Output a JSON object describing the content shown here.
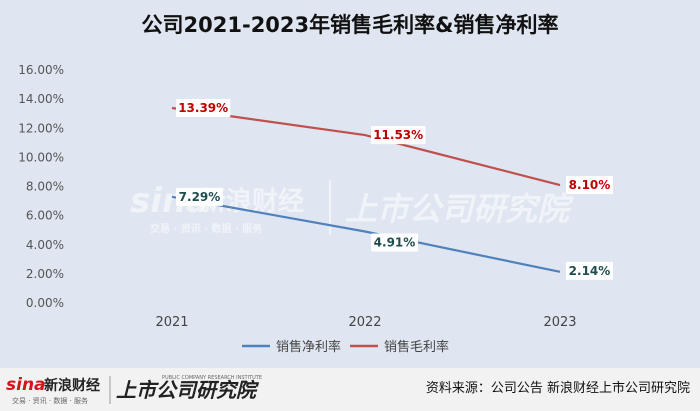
{
  "chart_data": {
    "type": "line",
    "title": "公司2021-2023年销售毛利率&销售净利率",
    "categories": [
      "2021",
      "2022",
      "2023"
    ],
    "y_ticks": [
      "0.00%",
      "2.00%",
      "4.00%",
      "6.00%",
      "8.00%",
      "10.00%",
      "12.00%",
      "14.00%",
      "16.00%"
    ],
    "ylim": [
      0,
      16
    ],
    "grid": false,
    "legend_position": "bottom",
    "series": [
      {
        "name": "销售净利率",
        "values": [
          7.29,
          4.91,
          2.14
        ],
        "labels": [
          "7.29%",
          "4.91%",
          "2.14%"
        ],
        "color": "#4f81bd",
        "label_color": "#1f4e4e"
      },
      {
        "name": "销售毛利率",
        "values": [
          13.39,
          11.53,
          8.1
        ],
        "labels": [
          "13.39%",
          "11.53%",
          "8.10%"
        ],
        "color": "#c0504d",
        "label_color": "#c00000"
      }
    ]
  },
  "watermark": {
    "brand_sina": "sina",
    "brand_cn": "新浪财经",
    "sub": "交易 · 资讯 · 数据 · 服务",
    "institute": "上市公司研究院"
  },
  "footer": {
    "logo_sina": "sina",
    "logo_cn": "新浪财经",
    "logo_sub": "交易 · 资讯 · 数据 · 服务",
    "institute": "上市公司研究院",
    "institute_en": "PUBLIC COMPANY RESEARCH INSTITUTE",
    "source": "资料来源：公司公告 新浪财经上市公司研究院"
  }
}
